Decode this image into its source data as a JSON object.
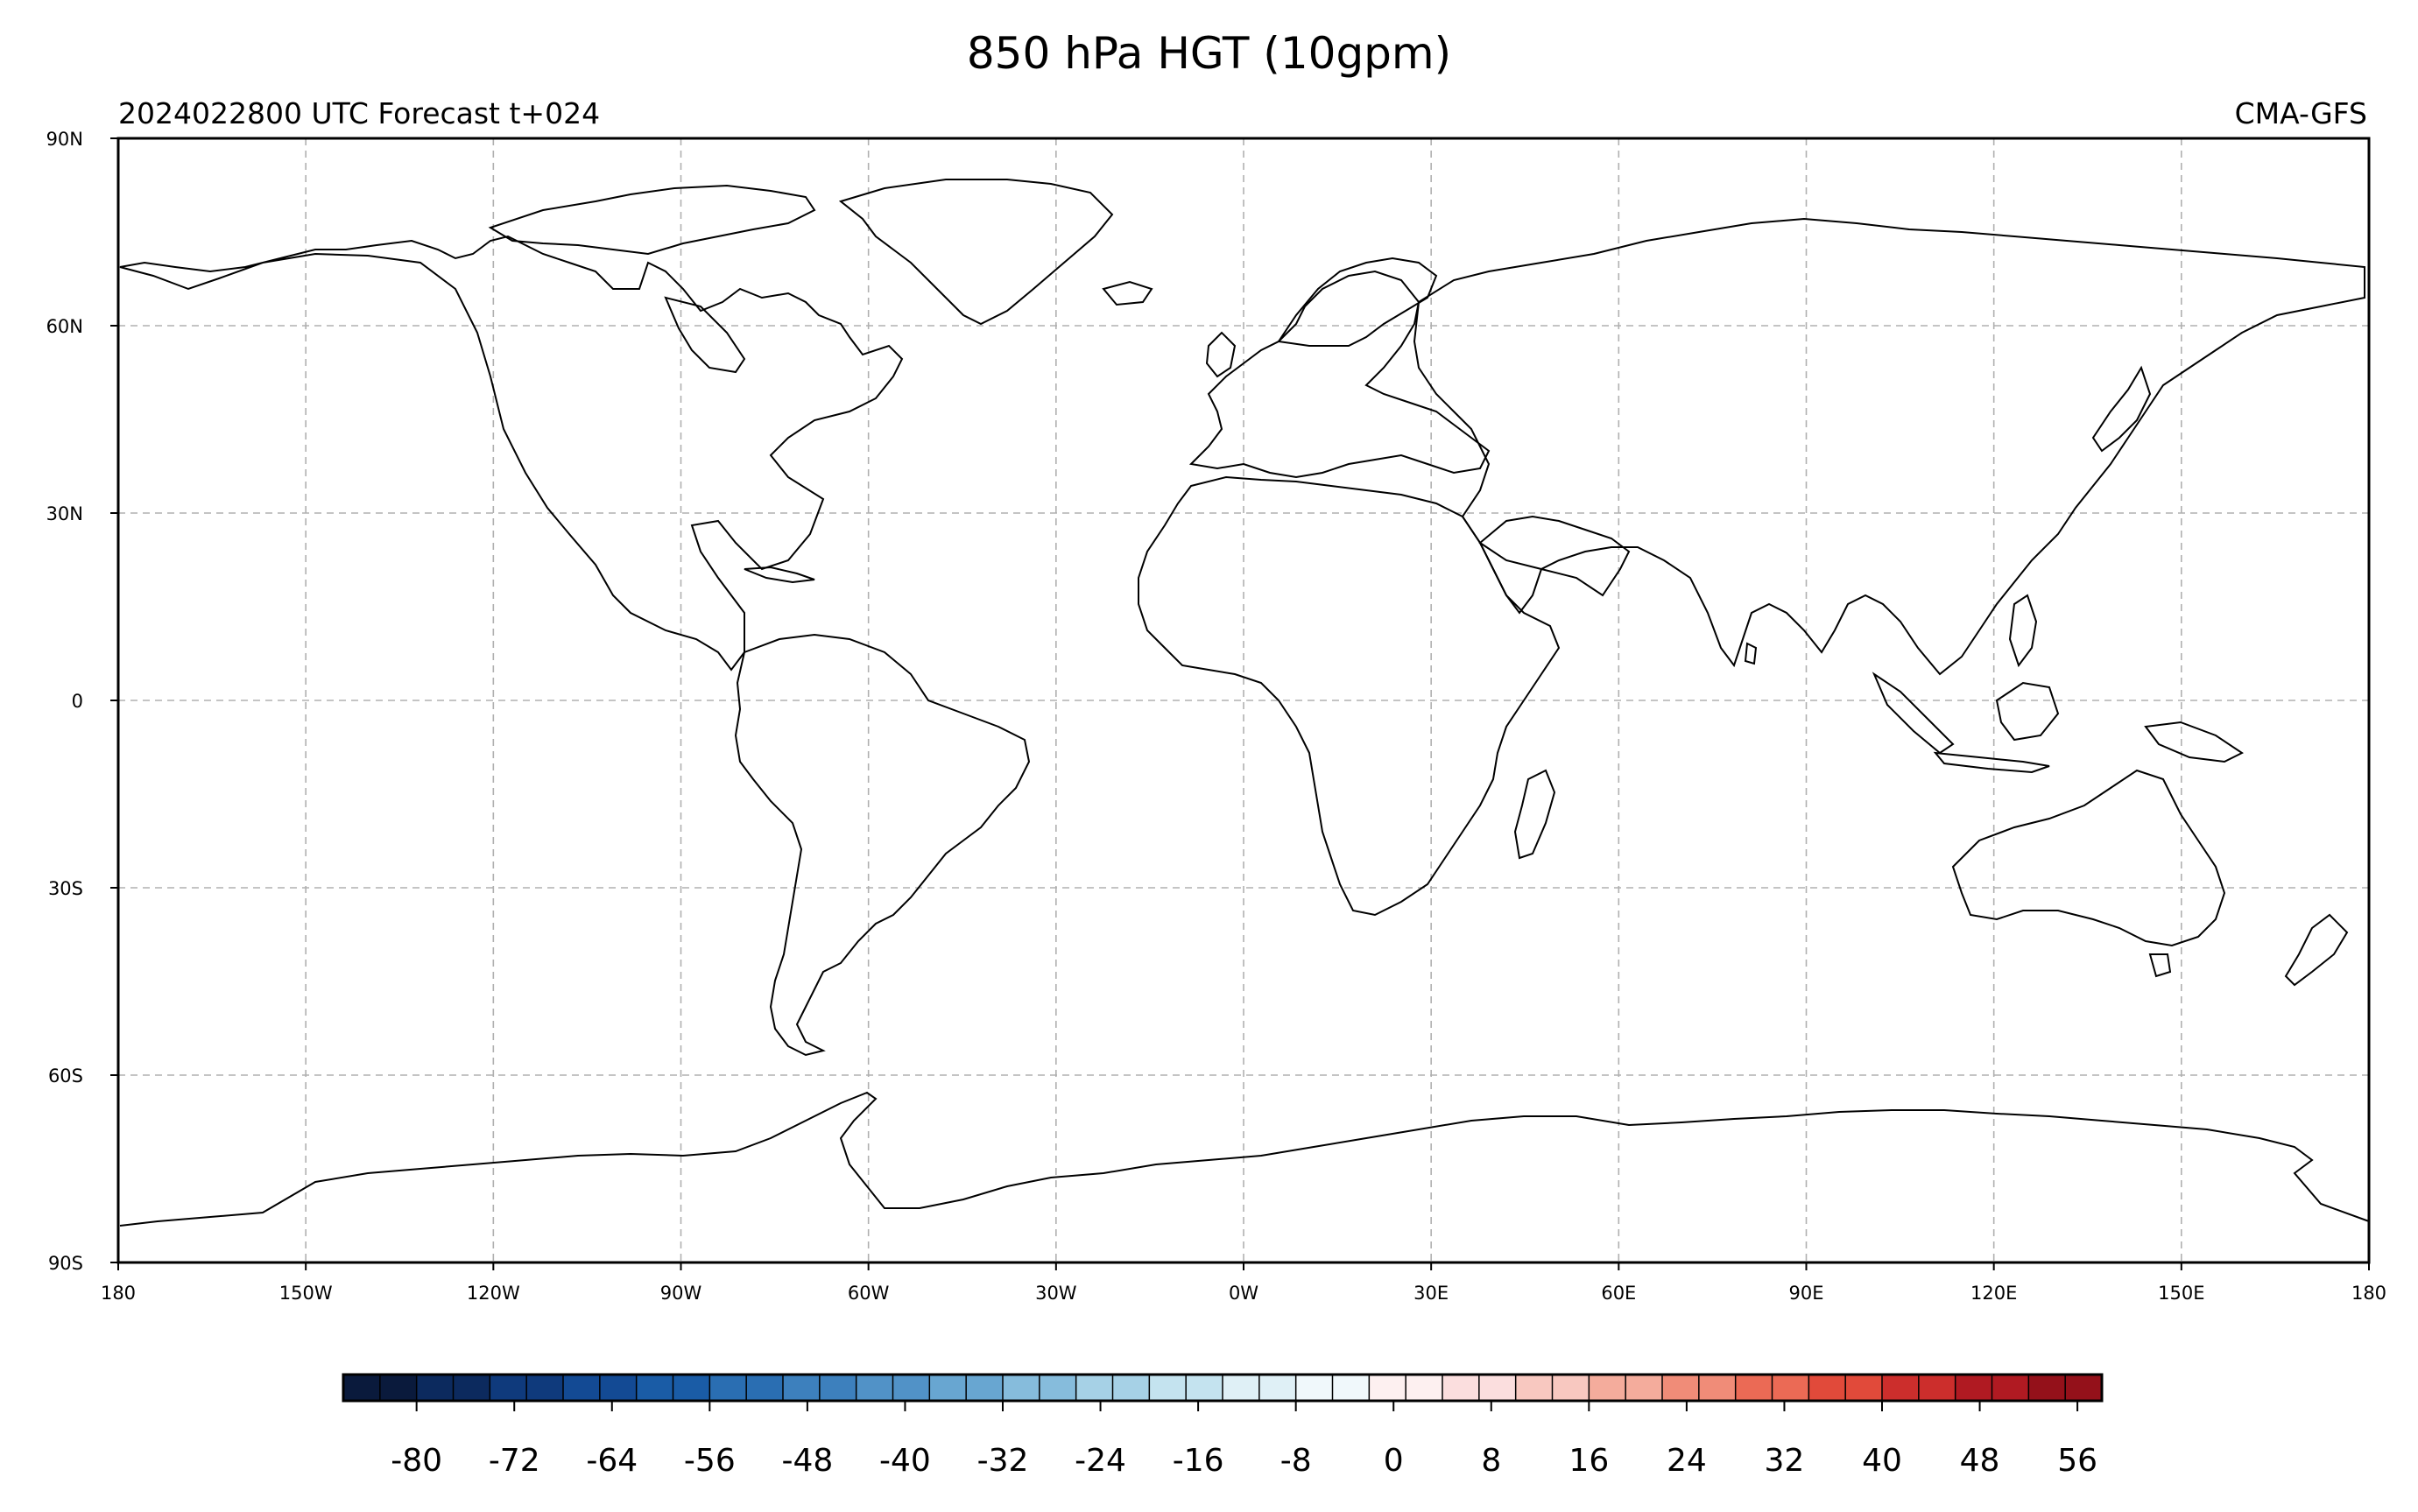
{
  "title": "850 hPa HGT (10gpm)",
  "subtitle_left": "2024022800 UTC Forecast t+024",
  "subtitle_right": "CMA-GFS",
  "lat_ticks": [
    "90N",
    "60N",
    "30N",
    "0",
    "30S",
    "60S",
    "90S"
  ],
  "lon_ticks": [
    "180",
    "150W",
    "120W",
    "90W",
    "60W",
    "30W",
    "0W",
    "30E",
    "60E",
    "90E",
    "120E",
    "150E",
    "180"
  ],
  "colorbar": {
    "tick_labels": [
      "-80",
      "-72",
      "-64",
      "-56",
      "-48",
      "-40",
      "-32",
      "-24",
      "-16",
      "-8",
      "0",
      "8",
      "16",
      "24",
      "32",
      "40",
      "48",
      "56"
    ],
    "colors": [
      "#0a1a3c",
      "#0c2a5e",
      "#0f3a7c",
      "#134a94",
      "#1a5ca6",
      "#2a6eb2",
      "#3d80bd",
      "#5192c7",
      "#68a6d1",
      "#86bcdc",
      "#a6d1e6",
      "#c4e3ef",
      "#dff0f6",
      "#f0f8fb",
      "#fdf0f0",
      "#fbdede",
      "#f8c8c0",
      "#f4ac9c",
      "#f08c78",
      "#eb6a55",
      "#e14a3a",
      "#cc2e2c",
      "#b01a22",
      "#94111a"
    ]
  }
}
